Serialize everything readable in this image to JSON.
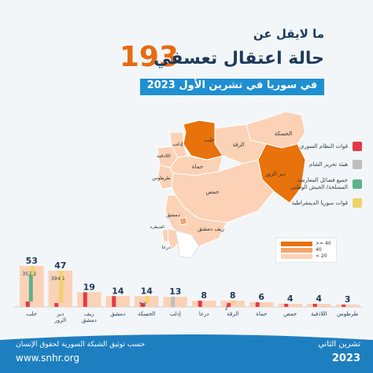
{
  "header": {
    "line1": "ما لايقل عن",
    "number": "193",
    "line2": "حالة اعتقال تعسفي",
    "subtitle": "في سوريا في تشرين الأول 2023"
  },
  "legend": [
    {
      "label": "قوات النظام السوري",
      "color": "#e53946"
    },
    {
      "label": "هيئة تحرير الشام",
      "color": "#bfbfbf"
    },
    {
      "label": "جميع فصائل المعارضة المسلحة/ الجيش الوطني",
      "color": "#5db38a"
    },
    {
      "label": "قوات سوريا الديمقراطية",
      "color": "#efd36a"
    }
  ],
  "map": {
    "cities": [
      "الحسكة",
      "الرقة",
      "حلب",
      "إدلب",
      "اللاذقية",
      "حماة",
      "طرطوس",
      "حمص",
      "دير الزور",
      "دمشق",
      "ريف دمشق",
      "القنيطرة",
      "درعا"
    ],
    "scale": [
      ">= 40",
      "40",
      "< 20"
    ],
    "colors": {
      "high": "#e8720c",
      "mid": "#f5a36b",
      "low": "#fbd2b6",
      "none": "#ffffff"
    }
  },
  "chart_data": {
    "type": "bar",
    "categories": [
      "حلب",
      "دير الزور",
      "ريف دمشق",
      "دمشق",
      "الحسكة",
      "إدلب",
      "درعا",
      "الرقة",
      "حماة",
      "حمص",
      "اللاذقية",
      "طرطوس"
    ],
    "totals": [
      53,
      47,
      19,
      14,
      14,
      13,
      8,
      8,
      6,
      4,
      4,
      3
    ],
    "series": [
      {
        "name": "قوات النظام السوري",
        "color": "#e53946",
        "values": [
          7,
          5,
          19,
          14,
          5,
          0,
          8,
          5,
          6,
          4,
          4,
          3
        ]
      },
      {
        "name": "هيئة تحرير الشام",
        "color": "#bfbfbf",
        "values": [
          0,
          0,
          0,
          0,
          0,
          13,
          0,
          0,
          0,
          0,
          0,
          0
        ]
      },
      {
        "name": "جميع فصائل المعارضة المسلحة/ الجيش الوطني",
        "color": "#5db38a",
        "values": [
          35,
          0,
          0,
          0,
          0,
          0,
          0,
          0,
          0,
          0,
          0,
          0
        ]
      },
      {
        "name": "قوات سوريا الديمقراطية",
        "color": "#efd36a",
        "values": [
          11,
          42,
          0,
          0,
          9,
          0,
          0,
          3,
          0,
          0,
          0,
          0
        ]
      }
    ],
    "inner_labels": [
      [
        "35",
        "7",
        "2"
      ],
      [
        "39",
        "4",
        "1"
      ],
      [],
      [],
      [
        "3",
        "2"
      ],
      [],
      [],
      [
        "2"
      ],
      [],
      [],
      [],
      []
    ]
  },
  "footer": {
    "org": "حسب توثيق الشبكة السورية لحقوق الإنسان",
    "web": "www.snhr.org",
    "month": "تشرين الثاني",
    "year": "2023"
  }
}
